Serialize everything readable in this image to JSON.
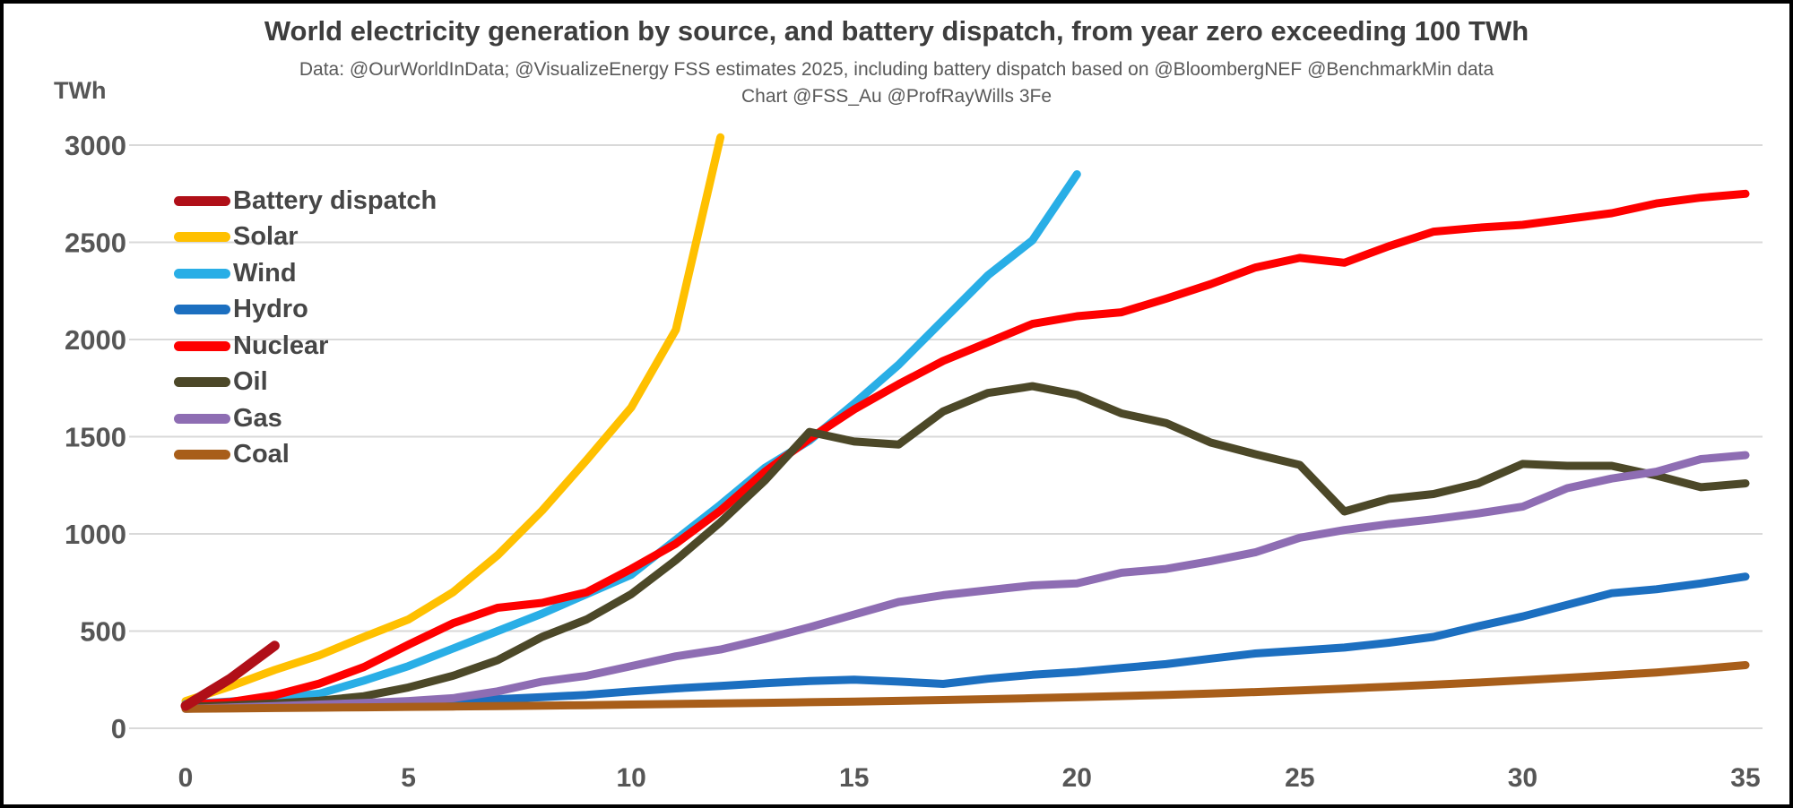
{
  "chart_data": {
    "type": "line",
    "title": "World electricity generation by source, and battery dispatch, from year zero exceeding 100 TWh",
    "subtitle1": "Data: @OurWorldInData; @VisualizeEnergy FSS estimates 2025, including battery dispatch based on @BloombergNEF @BenchmarkMin data",
    "subtitle2": "Chart @FSS_Au @ProfRayWills  3Fe",
    "ylabel": "TWh",
    "xlabel": "",
    "xlim": [
      0,
      35
    ],
    "ylim": [
      0,
      3000
    ],
    "grid": true,
    "legend_position": "top-left",
    "x_unit": "years since source exceeded 100 TWh (index = year)",
    "series": [
      {
        "name": "Battery dispatch",
        "color": "#B00F18",
        "line_width": 11,
        "start_x": 0,
        "values": [
          115,
          255,
          425
        ]
      },
      {
        "name": "Solar",
        "color": "#FFC000",
        "start_x": 0,
        "values": [
          140,
          215,
          300,
          375,
          470,
          560,
          700,
          890,
          1120,
          1380,
          1650,
          2050,
          3040
        ]
      },
      {
        "name": "Wind",
        "color": "#29AEE6",
        "start_x": 0,
        "values": [
          125,
          138,
          155,
          178,
          245,
          320,
          410,
          500,
          590,
          690,
          790,
          970,
          1150,
          1340,
          1480,
          1670,
          1870,
          2100,
          2330,
          2510,
          2850
        ]
      },
      {
        "name": "Hydro",
        "color": "#1C6FC0",
        "start_x": 0,
        "values": [
          112,
          116,
          120,
          124,
          128,
          132,
          140,
          150,
          160,
          172,
          190,
          205,
          218,
          232,
          243,
          250,
          240,
          228,
          255,
          275,
          290,
          310,
          330,
          358,
          385,
          400,
          415,
          440,
          470,
          525,
          575,
          635,
          695,
          715,
          745,
          780
        ]
      },
      {
        "name": "Nuclear",
        "color": "#FE0000",
        "start_x": 0,
        "values": [
          120,
          135,
          170,
          230,
          315,
          430,
          540,
          620,
          645,
          700,
          820,
          950,
          1120,
          1320,
          1490,
          1640,
          1770,
          1890,
          1985,
          2080,
          2120,
          2140,
          2210,
          2285,
          2370,
          2420,
          2395,
          2480,
          2555,
          2575,
          2590,
          2620,
          2650,
          2700,
          2730,
          2750
        ]
      },
      {
        "name": "Oil",
        "color": "#4C4828",
        "start_x": 0,
        "values": [
          110,
          118,
          128,
          142,
          165,
          210,
          270,
          350,
          470,
          560,
          690,
          865,
          1060,
          1275,
          1525,
          1475,
          1460,
          1630,
          1725,
          1760,
          1715,
          1620,
          1570,
          1470,
          1410,
          1355,
          1115,
          1180,
          1205,
          1260,
          1360,
          1350,
          1350,
          1300,
          1240,
          1260
        ]
      },
      {
        "name": "Gas",
        "color": "#8E6DB3",
        "start_x": 0,
        "values": [
          100,
          107,
          114,
          122,
          130,
          140,
          155,
          190,
          240,
          270,
          320,
          370,
          405,
          460,
          520,
          585,
          650,
          685,
          710,
          735,
          745,
          800,
          820,
          860,
          905,
          980,
          1020,
          1050,
          1075,
          1105,
          1140,
          1235,
          1285,
          1320,
          1385,
          1405
        ]
      },
      {
        "name": "Coal",
        "color": "#A85E1A",
        "start_x": 0,
        "values": [
          100,
          102,
          104,
          106,
          108,
          110,
          112,
          114,
          116,
          119,
          122,
          125,
          128,
          131,
          134,
          137,
          141,
          145,
          150,
          155,
          160,
          166,
          172,
          179,
          186,
          195,
          204,
          214,
          224,
          235,
          247,
          260,
          273,
          287,
          305,
          325
        ]
      }
    ],
    "draw_order": [
      1,
      2,
      3,
      4,
      5,
      6,
      7,
      0
    ]
  },
  "y_axis": {
    "ticks": [
      0,
      500,
      1000,
      1500,
      2000,
      2500,
      3000
    ]
  },
  "x_axis": {
    "ticks": [
      0,
      5,
      10,
      15,
      20,
      25,
      30,
      35
    ]
  },
  "styles": {
    "grid_color": "#D9D9D9",
    "tick_text_color": "#565656",
    "title_color": "#3D3D3D",
    "subtitle_color": "#595959",
    "background": "#FFFFFF",
    "border_color": "#000000"
  }
}
